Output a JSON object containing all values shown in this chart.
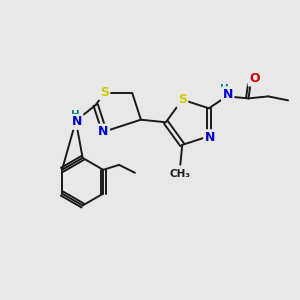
{
  "background_color": "#e8e8e8",
  "bond_color": "#1a1a1a",
  "S_color": "#cccc00",
  "N_color": "#0000cc",
  "O_color": "#cc0000",
  "H_color": "#008080",
  "figsize": [
    3.0,
    3.0
  ],
  "dpi": 100,
  "xlim": [
    0,
    300
  ],
  "ylim": [
    0,
    300
  ]
}
